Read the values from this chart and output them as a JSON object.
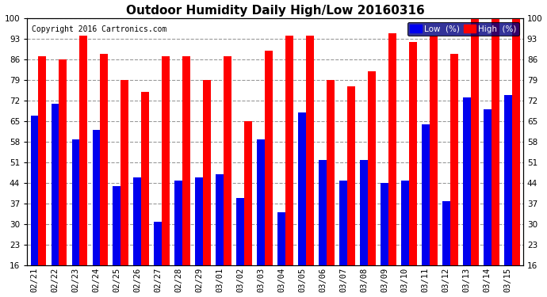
{
  "title": "Outdoor Humidity Daily High/Low 20160316",
  "copyright": "Copyright 2016 Cartronics.com",
  "dates": [
    "02/21",
    "02/22",
    "02/23",
    "02/24",
    "02/25",
    "02/26",
    "02/27",
    "02/28",
    "02/29",
    "03/01",
    "03/02",
    "03/03",
    "03/04",
    "03/05",
    "03/06",
    "03/07",
    "03/08",
    "03/09",
    "03/10",
    "03/11",
    "03/12",
    "03/13",
    "03/14",
    "03/15"
  ],
  "high": [
    87,
    86,
    94,
    88,
    79,
    75,
    87,
    87,
    79,
    87,
    65,
    89,
    94,
    94,
    79,
    77,
    82,
    95,
    92,
    94,
    88,
    100,
    100,
    100
  ],
  "low": [
    67,
    71,
    59,
    62,
    43,
    46,
    31,
    45,
    46,
    47,
    39,
    59,
    34,
    68,
    52,
    45,
    52,
    44,
    45,
    64,
    38,
    73,
    69,
    74
  ],
  "ylim_min": 16,
  "ylim_max": 100,
  "yticks": [
    16,
    23,
    30,
    37,
    44,
    51,
    58,
    65,
    72,
    79,
    86,
    93,
    100
  ],
  "high_color": "#ff0000",
  "low_color": "#0000ee",
  "bg_color": "#ffffff",
  "plot_bg_color": "#ffffff",
  "grid_color": "#999999",
  "title_fontsize": 11,
  "copyright_fontsize": 7,
  "tick_fontsize": 7.5,
  "legend_high_label": "High  (%)",
  "legend_low_label": "Low  (%)",
  "legend_bg": "#000080",
  "legend_high_bg": "#ff0000",
  "legend_low_bg": "#0000cc"
}
